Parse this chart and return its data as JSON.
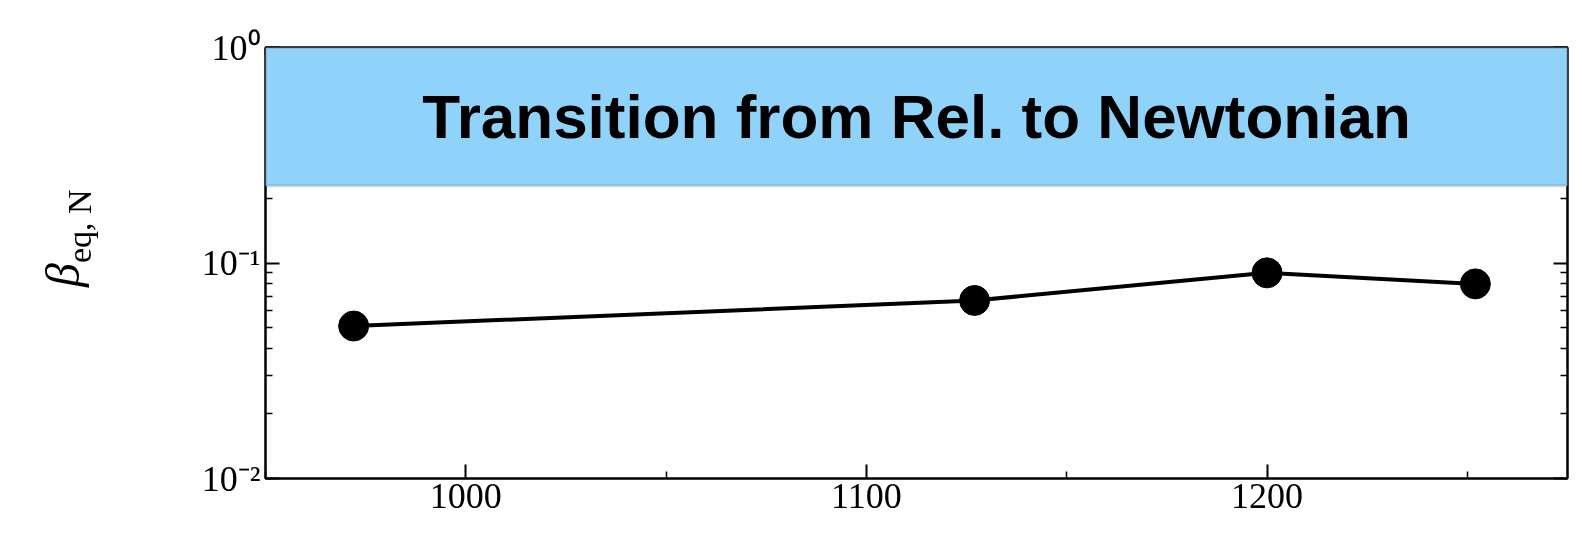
{
  "chart_data": {
    "type": "line",
    "ylabel": "β$_{eq, N}$",
    "x": [
      972,
      1127,
      1200,
      1252
    ],
    "series": [
      {
        "color": "#000000",
        "values": [
          0.051,
          0.067,
          0.09,
          0.08
        ]
      }
    ],
    "xlim": [
      950,
      1275
    ],
    "xticks": [
      {
        "value": 950,
        "label": null
      },
      1000,
      {
        "value": 1050,
        "label": null
      },
      1100,
      {
        "value": 1150,
        "label": null
      },
      1200,
      {
        "value": 1250,
        "label": null
      }
    ],
    "ylim": [
      0.01,
      1
    ],
    "yticks": [
      {
        "value": 0.01,
        "label": "10⁻²"
      },
      {
        "value": 0.02,
        "label": null
      },
      {
        "value": 0.03,
        "label": null
      },
      {
        "value": 0.04,
        "label": null
      },
      {
        "value": 0.05,
        "label": null
      },
      {
        "value": 0.06,
        "label": null
      },
      {
        "value": 0.07,
        "label": null
      },
      {
        "value": 0.08,
        "label": null
      },
      {
        "value": 0.09,
        "label": null
      },
      {
        "value": 0.1,
        "label": "10⁻¹"
      },
      {
        "value": 0.2,
        "label": null
      },
      {
        "value": 0.3,
        "label": null
      },
      {
        "value": 0.4,
        "label": null
      },
      {
        "value": 0.5,
        "label": null
      },
      {
        "value": 0.6,
        "label": null
      },
      {
        "value": 0.7,
        "label": null
      },
      {
        "value": 0.8,
        "label": null
      },
      {
        "value": 0.9,
        "label": null
      },
      {
        "value": 1,
        "label": "10⁰"
      }
    ],
    "log": "y",
    "grid": false,
    "marker": "circle",
    "line_style": "solid",
    "bands": [
      {
        "axis": "y",
        "from": 0.228,
        "to": 1,
        "label": "Transition from Rel. to Newtonian",
        "color": "#8fd3fb"
      }
    ]
  }
}
